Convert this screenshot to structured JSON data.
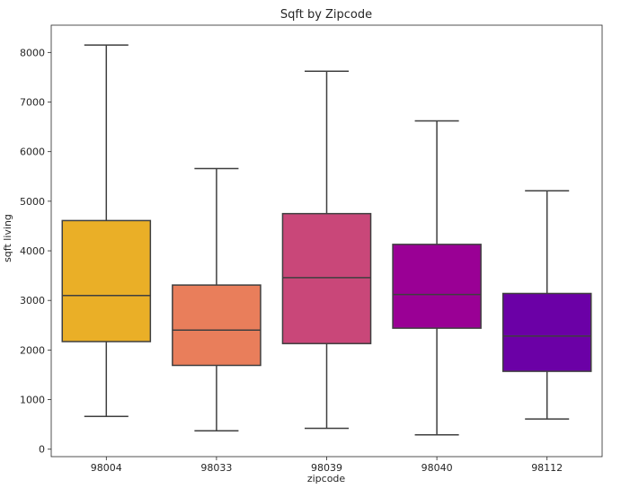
{
  "chart_data": {
    "type": "box",
    "title": "Sqft by Zipcode",
    "xlabel": "zipcode",
    "ylabel": "sqft living",
    "ylim": [
      -150,
      8550
    ],
    "yticks": [
      0,
      1000,
      2000,
      3000,
      4000,
      5000,
      6000,
      7000,
      8000
    ],
    "categories": [
      "98004",
      "98033",
      "98039",
      "98040",
      "98112"
    ],
    "boxes": [
      {
        "category": "98004",
        "whisker_low": 660,
        "q1": 2170,
        "median": 3100,
        "q3": 4610,
        "whisker_high": 8150,
        "color": "#eaaf27"
      },
      {
        "category": "98033",
        "whisker_low": 370,
        "q1": 1690,
        "median": 2400,
        "q3": 3310,
        "whisker_high": 5660,
        "color": "#e97e5b"
      },
      {
        "category": "98039",
        "whisker_low": 420,
        "q1": 2130,
        "median": 3460,
        "q3": 4750,
        "whisker_high": 7620,
        "color": "#c94779"
      },
      {
        "category": "98040",
        "whisker_low": 290,
        "q1": 2440,
        "median": 3120,
        "q3": 4130,
        "whisker_high": 6620,
        "color": "#9a0095"
      },
      {
        "category": "98112",
        "whisker_low": 610,
        "q1": 1570,
        "median": 2280,
        "q3": 3140,
        "whisker_high": 5210,
        "color": "#6b00a6"
      }
    ],
    "line_color": "#3f3f3f",
    "grid": false,
    "legend": "none"
  }
}
